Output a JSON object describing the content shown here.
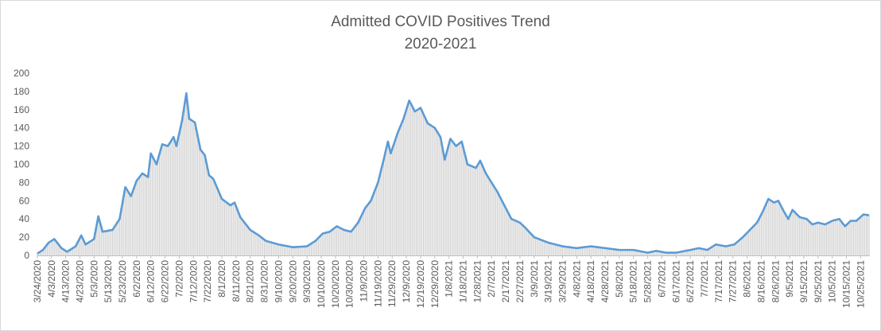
{
  "chart_data": {
    "type": "bar+line",
    "title": "Admitted COVID Positives Trend",
    "subtitle": "2020-2021",
    "xlabel": "",
    "ylabel": "",
    "ylim": [
      0,
      200
    ],
    "yticks": [
      0,
      20,
      40,
      60,
      80,
      100,
      120,
      140,
      160,
      180,
      200
    ],
    "grid": false,
    "legend": "none",
    "x_start": "3/24/2020",
    "x_end": "10/31/2021",
    "xtick_labels": [
      "3/24/2020",
      "4/3/2020",
      "4/13/2020",
      "4/23/2020",
      "5/3/2020",
      "5/13/2020",
      "5/23/2020",
      "6/2/2020",
      "6/12/2020",
      "6/22/2020",
      "7/2/2020",
      "7/12/2020",
      "7/22/2020",
      "8/1/2020",
      "8/11/2020",
      "8/21/2020",
      "8/31/2020",
      "9/10/2020",
      "9/20/2020",
      "9/30/2020",
      "10/10/2020",
      "10/20/2020",
      "10/30/2020",
      "11/9/2020",
      "11/19/2020",
      "11/29/2020",
      "12/9/2020",
      "12/19/2020",
      "12/29/2020",
      "1/8/2021",
      "1/18/2021",
      "1/28/2021",
      "2/7/2021",
      "2/17/2021",
      "2/27/2021",
      "3/9/2021",
      "3/19/2021",
      "3/29/2021",
      "4/8/2021",
      "4/18/2021",
      "4/28/2021",
      "5/8/2021",
      "5/18/2021",
      "5/28/2021",
      "6/7/2021",
      "6/17/2021",
      "6/27/2021",
      "7/7/2021",
      "7/17/2021",
      "7/27/2021",
      "8/6/2021",
      "8/16/2021",
      "8/26/2021",
      "9/5/2021",
      "9/15/2021",
      "9/25/2021",
      "10/5/2021",
      "10/15/2021",
      "10/25/2021"
    ],
    "keypoints": [
      {
        "x": "3/24/2020",
        "y": 2
      },
      {
        "x": "3/28/2020",
        "y": 6
      },
      {
        "x": "4/1/2020",
        "y": 14
      },
      {
        "x": "4/5/2020",
        "y": 18
      },
      {
        "x": "4/10/2020",
        "y": 8
      },
      {
        "x": "4/14/2020",
        "y": 4
      },
      {
        "x": "4/20/2020",
        "y": 10
      },
      {
        "x": "4/24/2020",
        "y": 22
      },
      {
        "x": "4/27/2020",
        "y": 12
      },
      {
        "x": "5/3/2020",
        "y": 18
      },
      {
        "x": "5/6/2020",
        "y": 43
      },
      {
        "x": "5/9/2020",
        "y": 26
      },
      {
        "x": "5/16/2020",
        "y": 28
      },
      {
        "x": "5/21/2020",
        "y": 40
      },
      {
        "x": "5/25/2020",
        "y": 75
      },
      {
        "x": "5/29/2020",
        "y": 65
      },
      {
        "x": "6/2/2020",
        "y": 82
      },
      {
        "x": "6/6/2020",
        "y": 90
      },
      {
        "x": "6/10/2020",
        "y": 86
      },
      {
        "x": "6/12/2020",
        "y": 112
      },
      {
        "x": "6/16/2020",
        "y": 100
      },
      {
        "x": "6/20/2020",
        "y": 122
      },
      {
        "x": "6/24/2020",
        "y": 120
      },
      {
        "x": "6/28/2020",
        "y": 130
      },
      {
        "x": "6/30/2020",
        "y": 120
      },
      {
        "x": "7/4/2020",
        "y": 148
      },
      {
        "x": "7/7/2020",
        "y": 178
      },
      {
        "x": "7/9/2020",
        "y": 150
      },
      {
        "x": "7/13/2020",
        "y": 146
      },
      {
        "x": "7/17/2020",
        "y": 116
      },
      {
        "x": "7/20/2020",
        "y": 110
      },
      {
        "x": "7/23/2020",
        "y": 88
      },
      {
        "x": "7/26/2020",
        "y": 84
      },
      {
        "x": "8/1/2020",
        "y": 62
      },
      {
        "x": "8/7/2020",
        "y": 55
      },
      {
        "x": "8/10/2020",
        "y": 58
      },
      {
        "x": "8/14/2020",
        "y": 42
      },
      {
        "x": "8/21/2020",
        "y": 28
      },
      {
        "x": "8/27/2020",
        "y": 22
      },
      {
        "x": "9/1/2020",
        "y": 16
      },
      {
        "x": "9/10/2020",
        "y": 12
      },
      {
        "x": "9/20/2020",
        "y": 9
      },
      {
        "x": "9/30/2020",
        "y": 10
      },
      {
        "x": "10/6/2020",
        "y": 16
      },
      {
        "x": "10/11/2020",
        "y": 24
      },
      {
        "x": "10/16/2020",
        "y": 26
      },
      {
        "x": "10/21/2020",
        "y": 32
      },
      {
        "x": "10/26/2020",
        "y": 28
      },
      {
        "x": "10/31/2020",
        "y": 26
      },
      {
        "x": "11/5/2020",
        "y": 36
      },
      {
        "x": "11/10/2020",
        "y": 52
      },
      {
        "x": "11/14/2020",
        "y": 60
      },
      {
        "x": "11/19/2020",
        "y": 80
      },
      {
        "x": "11/23/2020",
        "y": 105
      },
      {
        "x": "11/26/2020",
        "y": 125
      },
      {
        "x": "11/28/2020",
        "y": 112
      },
      {
        "x": "12/3/2020",
        "y": 135
      },
      {
        "x": "12/7/2020",
        "y": 150
      },
      {
        "x": "12/11/2020",
        "y": 170
      },
      {
        "x": "12/15/2020",
        "y": 158
      },
      {
        "x": "12/19/2020",
        "y": 162
      },
      {
        "x": "12/24/2020",
        "y": 145
      },
      {
        "x": "12/29/2020",
        "y": 140
      },
      {
        "x": "1/2/2021",
        "y": 130
      },
      {
        "x": "1/5/2021",
        "y": 105
      },
      {
        "x": "1/9/2021",
        "y": 128
      },
      {
        "x": "1/13/2021",
        "y": 120
      },
      {
        "x": "1/17/2021",
        "y": 125
      },
      {
        "x": "1/21/2021",
        "y": 100
      },
      {
        "x": "1/27/2021",
        "y": 96
      },
      {
        "x": "1/30/2021",
        "y": 104
      },
      {
        "x": "2/3/2021",
        "y": 90
      },
      {
        "x": "2/7/2021",
        "y": 80
      },
      {
        "x": "2/11/2021",
        "y": 70
      },
      {
        "x": "2/17/2021",
        "y": 52
      },
      {
        "x": "2/21/2021",
        "y": 40
      },
      {
        "x": "2/27/2021",
        "y": 36
      },
      {
        "x": "3/3/2021",
        "y": 30
      },
      {
        "x": "3/9/2021",
        "y": 20
      },
      {
        "x": "3/19/2021",
        "y": 14
      },
      {
        "x": "3/29/2021",
        "y": 10
      },
      {
        "x": "4/8/2021",
        "y": 8
      },
      {
        "x": "4/18/2021",
        "y": 10
      },
      {
        "x": "4/28/2021",
        "y": 8
      },
      {
        "x": "5/8/2021",
        "y": 6
      },
      {
        "x": "5/18/2021",
        "y": 6
      },
      {
        "x": "5/28/2021",
        "y": 3
      },
      {
        "x": "6/3/2021",
        "y": 5
      },
      {
        "x": "6/10/2021",
        "y": 3
      },
      {
        "x": "6/17/2021",
        "y": 3
      },
      {
        "x": "6/27/2021",
        "y": 6
      },
      {
        "x": "7/3/2021",
        "y": 8
      },
      {
        "x": "7/9/2021",
        "y": 6
      },
      {
        "x": "7/15/2021",
        "y": 12
      },
      {
        "x": "7/22/2021",
        "y": 10
      },
      {
        "x": "7/28/2021",
        "y": 12
      },
      {
        "x": "8/3/2021",
        "y": 20
      },
      {
        "x": "8/8/2021",
        "y": 28
      },
      {
        "x": "8/13/2021",
        "y": 36
      },
      {
        "x": "8/17/2021",
        "y": 48
      },
      {
        "x": "8/21/2021",
        "y": 62
      },
      {
        "x": "8/25/2021",
        "y": 58
      },
      {
        "x": "8/28/2021",
        "y": 60
      },
      {
        "x": "9/1/2021",
        "y": 48
      },
      {
        "x": "9/4/2021",
        "y": 40
      },
      {
        "x": "9/7/2021",
        "y": 50
      },
      {
        "x": "9/12/2021",
        "y": 42
      },
      {
        "x": "9/17/2021",
        "y": 40
      },
      {
        "x": "9/21/2021",
        "y": 34
      },
      {
        "x": "9/25/2021",
        "y": 36
      },
      {
        "x": "9/30/2021",
        "y": 34
      },
      {
        "x": "10/5/2021",
        "y": 38
      },
      {
        "x": "10/10/2021",
        "y": 40
      },
      {
        "x": "10/14/2021",
        "y": 32
      },
      {
        "x": "10/18/2021",
        "y": 38
      },
      {
        "x": "10/22/2021",
        "y": 38
      },
      {
        "x": "10/27/2021",
        "y": 45
      },
      {
        "x": "10/31/2021",
        "y": 44
      }
    ]
  },
  "colors": {
    "bars": "#d0d0d0",
    "line": "#5b9bd5",
    "axis": "#bfbfbf",
    "text": "#595959"
  }
}
